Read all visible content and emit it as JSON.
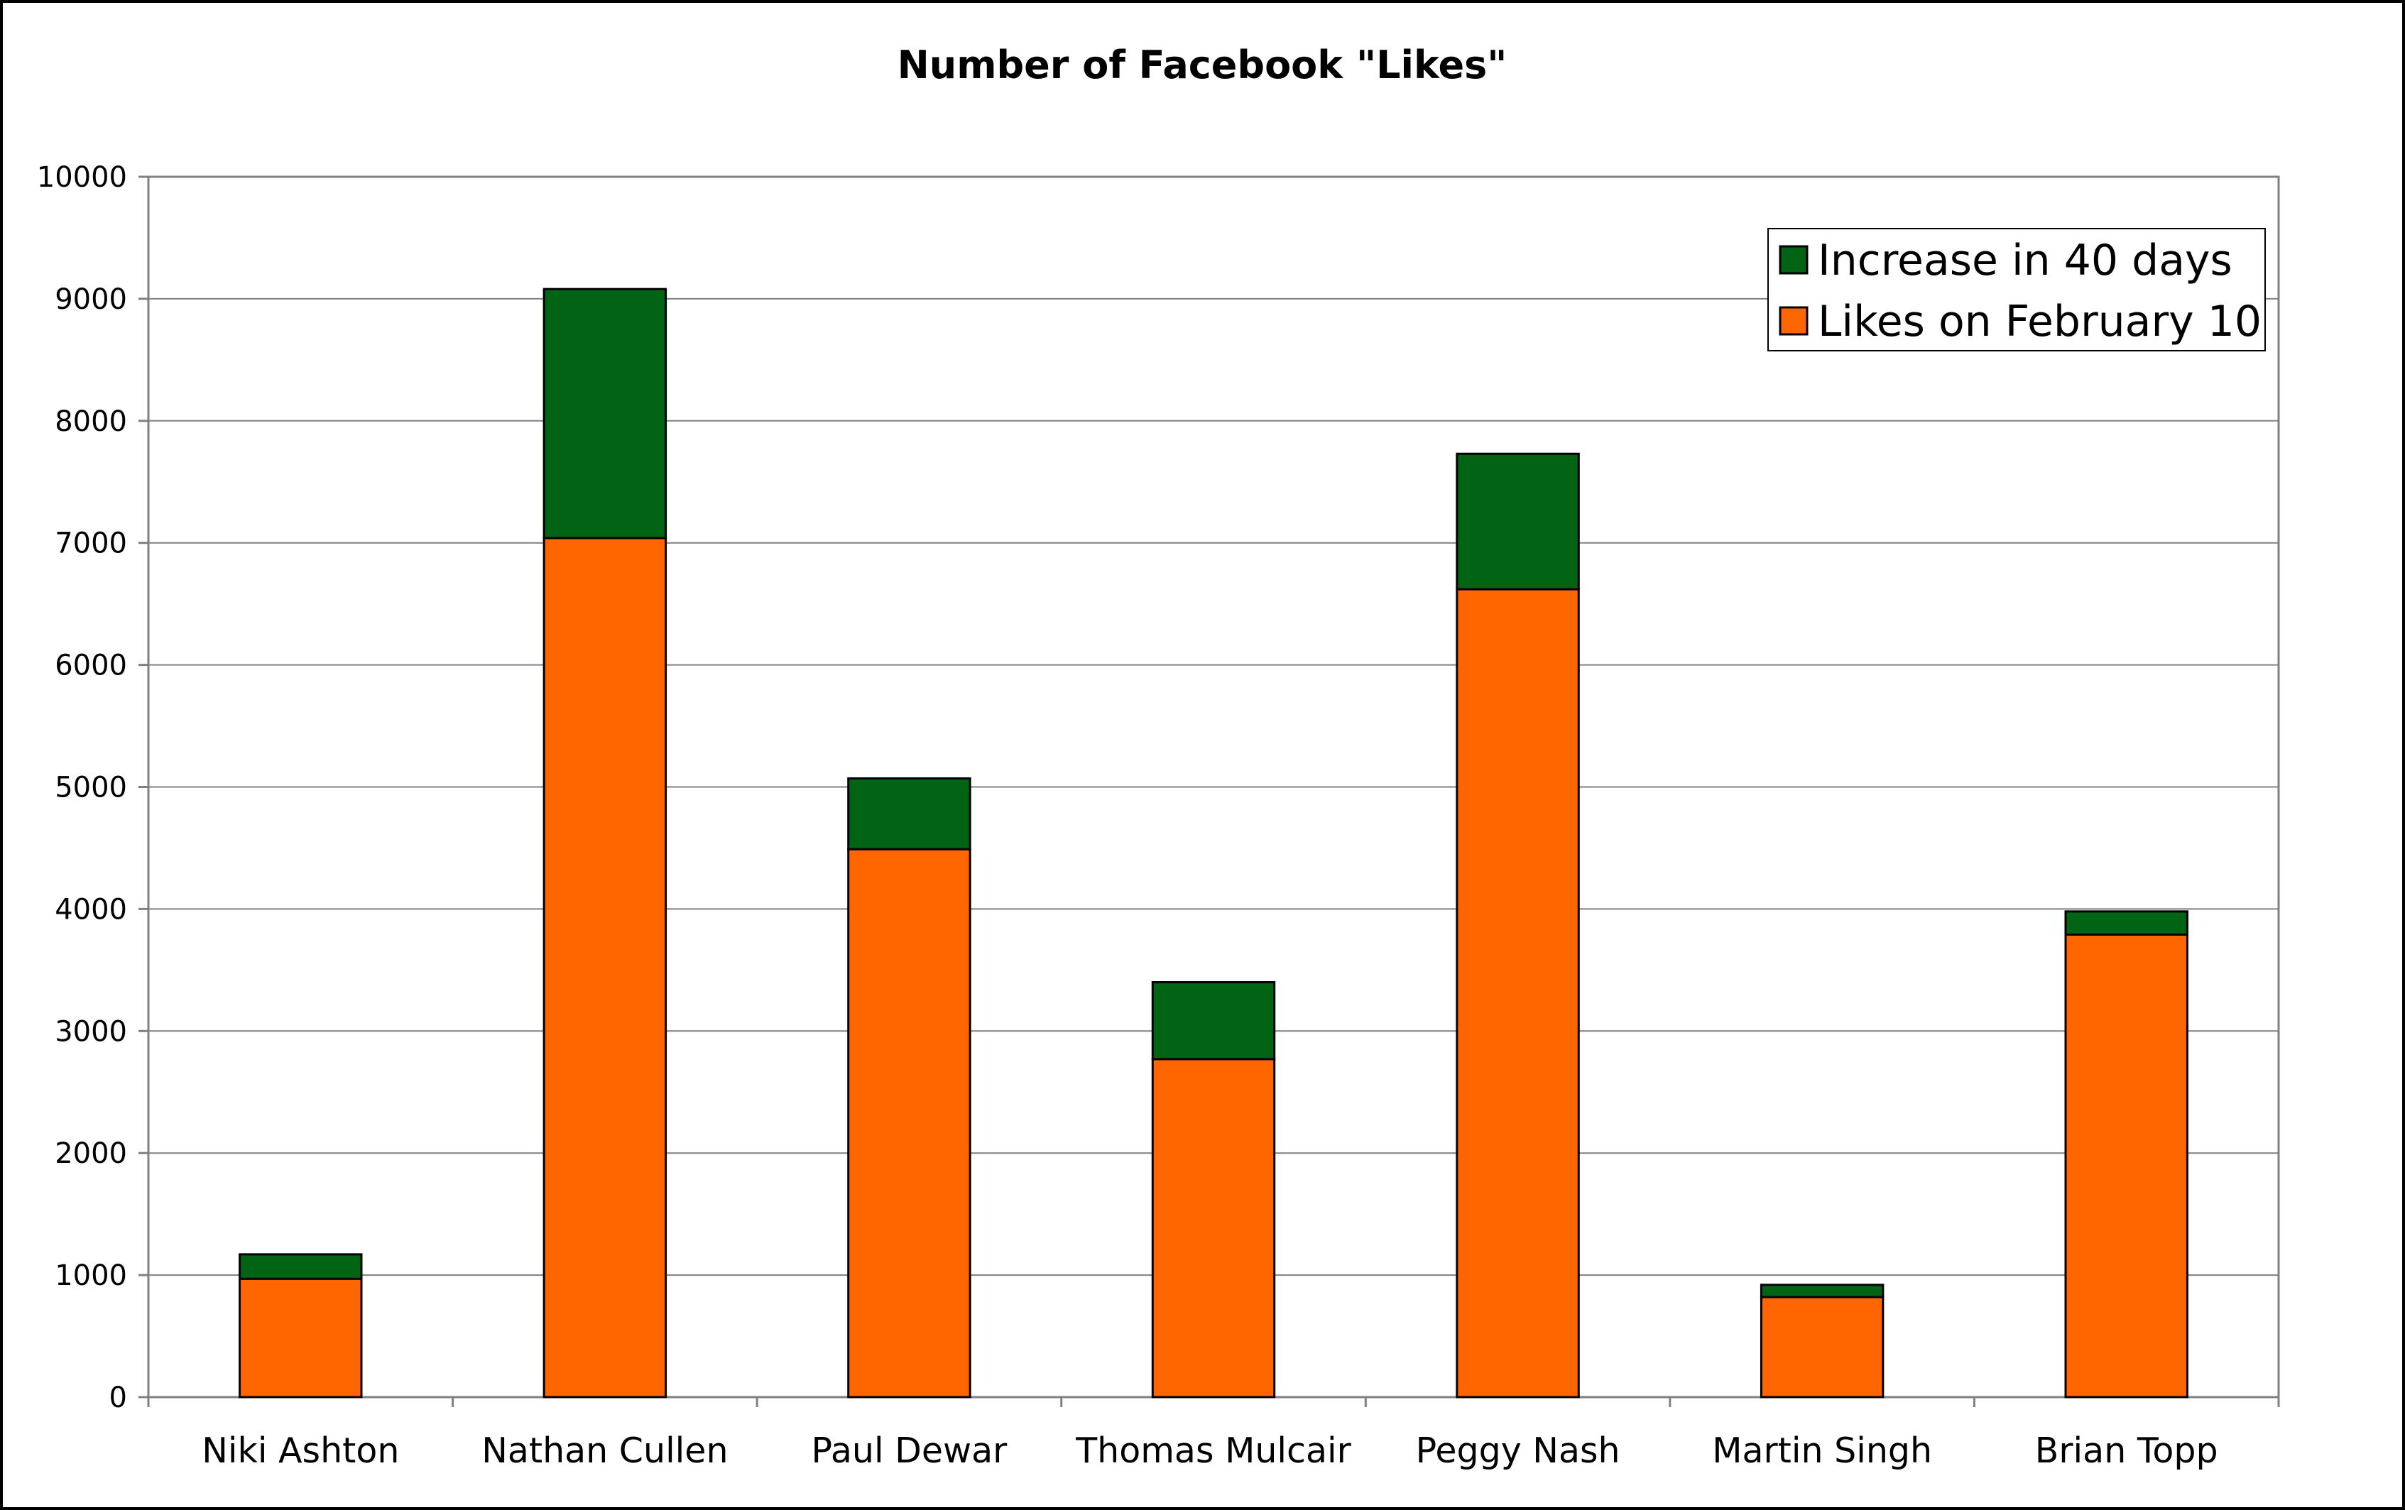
{
  "chart_data": {
    "type": "bar",
    "stacked": true,
    "title": "Number of Facebook \"Likes\"",
    "xlabel": "",
    "ylabel": "",
    "ylim": [
      0,
      10000
    ],
    "yticks": [
      0,
      1000,
      2000,
      3000,
      4000,
      5000,
      6000,
      7000,
      8000,
      9000,
      10000
    ],
    "categories": [
      "Niki Ashton",
      "Nathan Cullen",
      "Paul Dewar",
      "Thomas Mulcair",
      "Peggy Nash",
      "Martin Singh",
      "Brian Topp"
    ],
    "series": [
      {
        "name": "Likes on February 10",
        "color": "#ff6600",
        "values": [
          970,
          7040,
          4490,
          2770,
          6620,
          820,
          3790
        ]
      },
      {
        "name": "Increase in 40 days",
        "color": "#006414",
        "values": [
          200,
          2040,
          580,
          630,
          1110,
          100,
          190
        ]
      }
    ],
    "legend": {
      "position": "top-right",
      "order": [
        "Increase in 40 days",
        "Likes on February 10"
      ]
    },
    "grid": true,
    "gridline_color": "#808080"
  }
}
